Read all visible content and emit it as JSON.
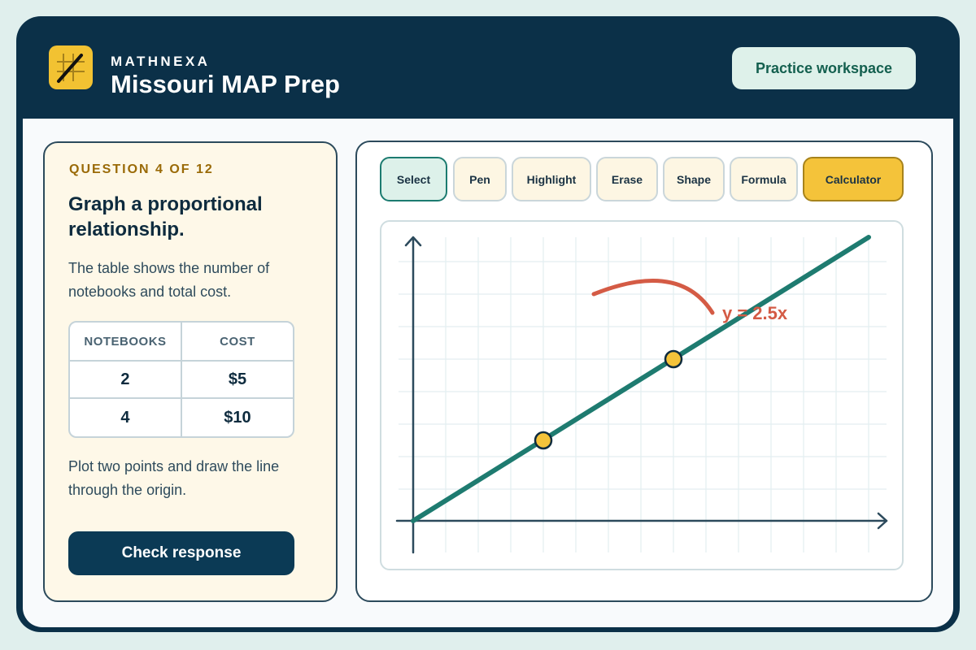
{
  "header": {
    "brand": "MATHNEXA",
    "title": "Missouri MAP Prep",
    "practice_button": "Practice workspace"
  },
  "question": {
    "label": "QUESTION 4 OF 12",
    "title": "Graph a proportional relationship.",
    "description": "The table shows the number of notebooks and total cost.",
    "table": {
      "headers": [
        "NOTEBOOKS",
        "COST"
      ],
      "rows": [
        [
          "2",
          "$5"
        ],
        [
          "4",
          "$10"
        ]
      ]
    },
    "instruction": "Plot two points and draw the line through the origin.",
    "check_button": "Check response"
  },
  "toolbar": {
    "tools": [
      "Select",
      "Pen",
      "Highlight",
      "Erase",
      "Shape",
      "Formula",
      "Calculator"
    ],
    "active": "Select"
  },
  "graph": {
    "equation_label": "y = 2.5x",
    "slope": 2.5,
    "points": [
      [
        2,
        5
      ],
      [
        4,
        10
      ]
    ],
    "line_color": "#1e7b70",
    "point_color": "#f4c33a",
    "annotation_color": "#d45b45"
  },
  "colors": {
    "navy": "#0b3048",
    "accent_yellow": "#f2c232",
    "accent_teal": "#1e7b70"
  }
}
